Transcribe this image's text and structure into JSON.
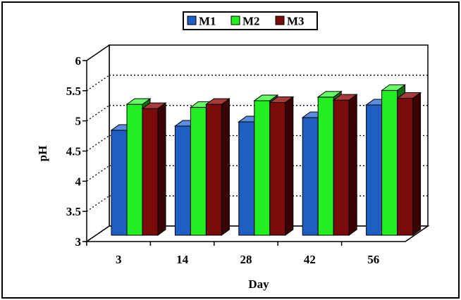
{
  "chart_data": {
    "type": "bar",
    "xlabel": "Day",
    "ylabel": "pH",
    "categories": [
      "3",
      "14",
      "28",
      "42",
      "56"
    ],
    "series": [
      {
        "name": "M1",
        "values": [
          4.74,
          4.81,
          4.88,
          4.95,
          5.16
        ],
        "color": "#1f5fc4",
        "top_color": "#5b8ee0",
        "side_color": "#0f2e6a"
      },
      {
        "name": "M2",
        "values": [
          5.17,
          5.12,
          5.23,
          5.29,
          5.4
        ],
        "color": "#22ee22",
        "top_color": "#66ff66",
        "side_color": "#0f6e0f"
      },
      {
        "name": "M3",
        "values": [
          5.1,
          5.17,
          5.2,
          5.24,
          5.27
        ],
        "color": "#7b0a0a",
        "top_color": "#a83a3a",
        "side_color": "#3a0303"
      }
    ],
    "ylim": [
      3,
      6
    ],
    "yticks": [
      "3",
      "3.5",
      "4",
      "4.5",
      "5",
      "5.5",
      "6"
    ],
    "legend_position": "top",
    "grid": "dotted horizontal gridlines"
  }
}
